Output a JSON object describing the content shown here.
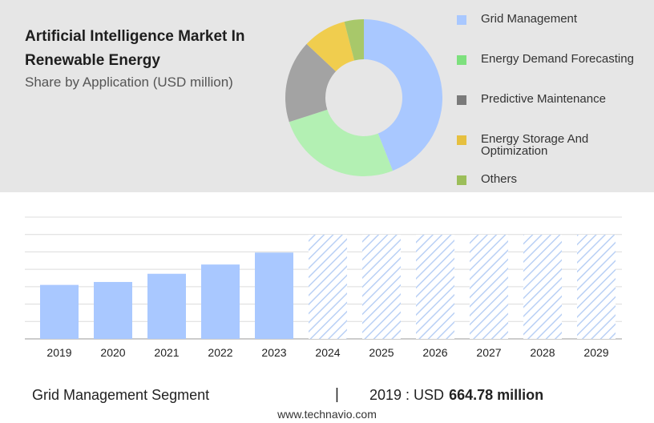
{
  "header": {
    "title": "Artificial Intelligence Market In Renewable Energy",
    "subtitle": "Share by Application (USD million)"
  },
  "chart_data": [
    {
      "type": "pie",
      "variant": "donut",
      "categories": [
        "Grid Management",
        "Energy Demand Forecasting",
        "Predictive Maintenance",
        "Energy Storage And Optimization",
        "Others"
      ],
      "values": [
        44,
        26,
        17,
        9,
        4
      ],
      "colors": [
        "#a9c8ff",
        "#b3f0b3",
        "#a3a3a3",
        "#f0cd4e",
        "#a8c86a"
      ],
      "legend_swatch_colors": [
        "#a9c8ff",
        "#7de07d",
        "#7a7a7a",
        "#e6c040",
        "#9cbe5a"
      ],
      "legend_position": "right"
    },
    {
      "type": "bar",
      "categories": [
        "2019",
        "2020",
        "2021",
        "2022",
        "2023",
        "2024",
        "2025",
        "2026",
        "2027",
        "2028",
        "2029"
      ],
      "values": [
        664.78,
        701,
        802,
        916,
        1063,
        1283,
        1283,
        1283,
        1283,
        1283,
        1283
      ],
      "forecast_from": "2024",
      "bar_color": "#a9c8ff",
      "forecast_style": "hatched",
      "grid": true,
      "ylim": [
        0,
        1500
      ]
    }
  ],
  "footer": {
    "segment": "Grid Management Segment",
    "separator": "|",
    "year_label": "2019 : USD",
    "value": "664.78 million",
    "watermark": "www.technavio.com"
  }
}
